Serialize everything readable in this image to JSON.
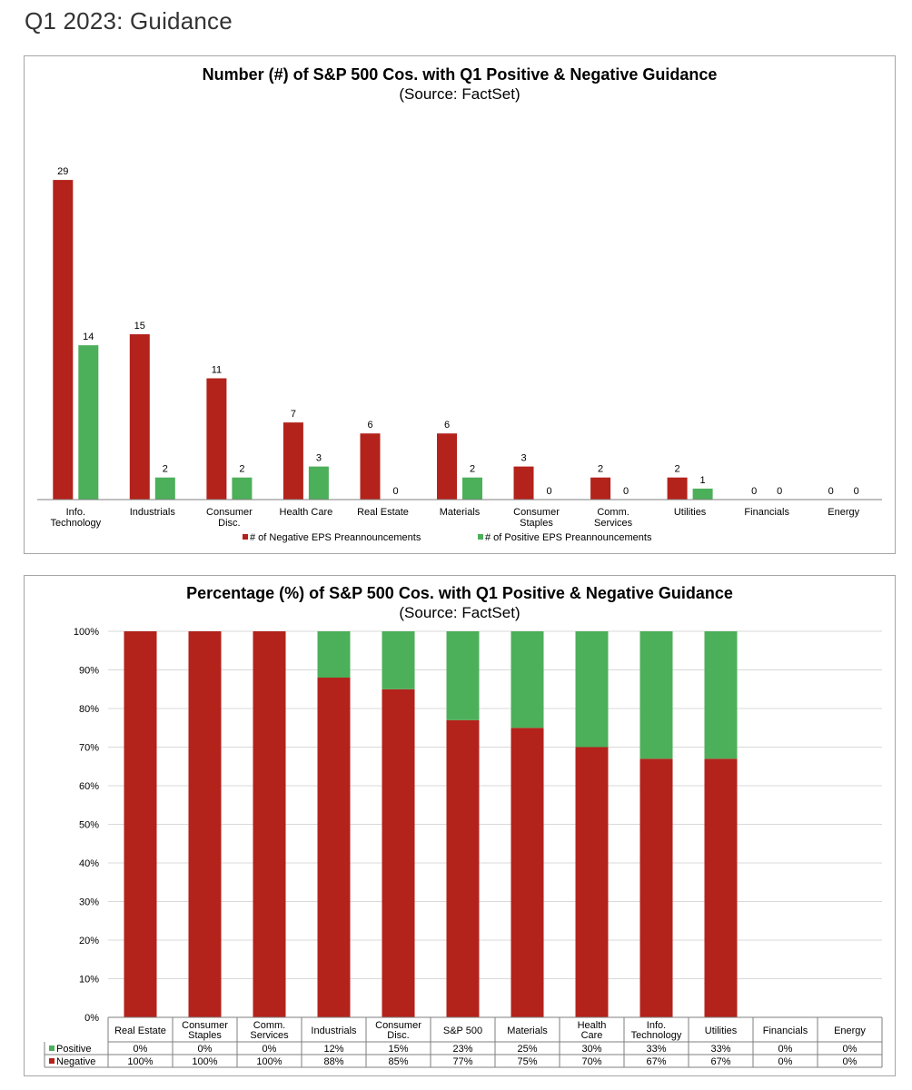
{
  "page": {
    "heading": "Q1 2023: Guidance"
  },
  "colors": {
    "negative": "#b3221b",
    "positive": "#4caf5a",
    "axis": "#7f7f7f",
    "grid": "#d9d9d9"
  },
  "chart_data": [
    {
      "type": "bar",
      "title": "Number (#) of S&P 500 Cos. with Q1 Positive & Negative Guidance",
      "subtitle": "(Source: FactSet)",
      "categories": [
        [
          "Info.",
          "Technology"
        ],
        [
          "Industrials"
        ],
        [
          "Consumer",
          "Disc."
        ],
        [
          "Health Care"
        ],
        [
          "Real Estate"
        ],
        [
          "Materials"
        ],
        [
          "Consumer",
          "Staples"
        ],
        [
          "Comm.",
          "Services"
        ],
        [
          "Utilities"
        ],
        [
          "Financials"
        ],
        [
          "Energy"
        ]
      ],
      "series": [
        {
          "name": "# of Negative EPS Preannouncements",
          "color": "#b3221b",
          "values": [
            29,
            15,
            11,
            7,
            6,
            6,
            3,
            2,
            2,
            0,
            0
          ]
        },
        {
          "name": "# of Positive EPS Preannouncements",
          "color": "#4caf5a",
          "values": [
            14,
            2,
            2,
            3,
            0,
            2,
            0,
            0,
            1,
            0,
            0
          ]
        }
      ],
      "ylim": [
        0,
        30
      ],
      "grid": false,
      "legend": "bottom"
    },
    {
      "type": "bar",
      "stacked": true,
      "title": "Percentage (%) of S&P 500 Cos. with Q1 Positive & Negative Guidance",
      "subtitle": "(Source: FactSet)",
      "categories": [
        [
          "Real Estate"
        ],
        [
          "Consumer",
          "Staples"
        ],
        [
          "Comm.",
          "Services"
        ],
        [
          "Industrials"
        ],
        [
          "Consumer",
          "Disc."
        ],
        [
          "S&P 500"
        ],
        [
          "Materials"
        ],
        [
          "Health",
          "Care"
        ],
        [
          "Info.",
          "Technology"
        ],
        [
          "Utilities"
        ],
        [
          "Financials"
        ],
        [
          "Energy"
        ]
      ],
      "series": [
        {
          "name": "Positive",
          "color": "#4caf5a",
          "values": [
            0,
            0,
            0,
            12,
            15,
            23,
            25,
            30,
            33,
            33,
            0,
            0
          ],
          "labels": [
            "0%",
            "0%",
            "0%",
            "12%",
            "15%",
            "23%",
            "25%",
            "30%",
            "33%",
            "33%",
            "0%",
            "0%"
          ]
        },
        {
          "name": "Negative",
          "color": "#b3221b",
          "values": [
            100,
            100,
            100,
            88,
            85,
            77,
            75,
            70,
            67,
            67,
            0,
            0
          ],
          "labels": [
            "100%",
            "100%",
            "100%",
            "88%",
            "85%",
            "77%",
            "75%",
            "70%",
            "67%",
            "67%",
            "0%",
            "0%"
          ]
        }
      ],
      "ylim": [
        0,
        100
      ],
      "yticks": [
        "0%",
        "10%",
        "20%",
        "30%",
        "40%",
        "50%",
        "60%",
        "70%",
        "80%",
        "90%",
        "100%"
      ],
      "grid": true,
      "legend": "data-table"
    }
  ]
}
